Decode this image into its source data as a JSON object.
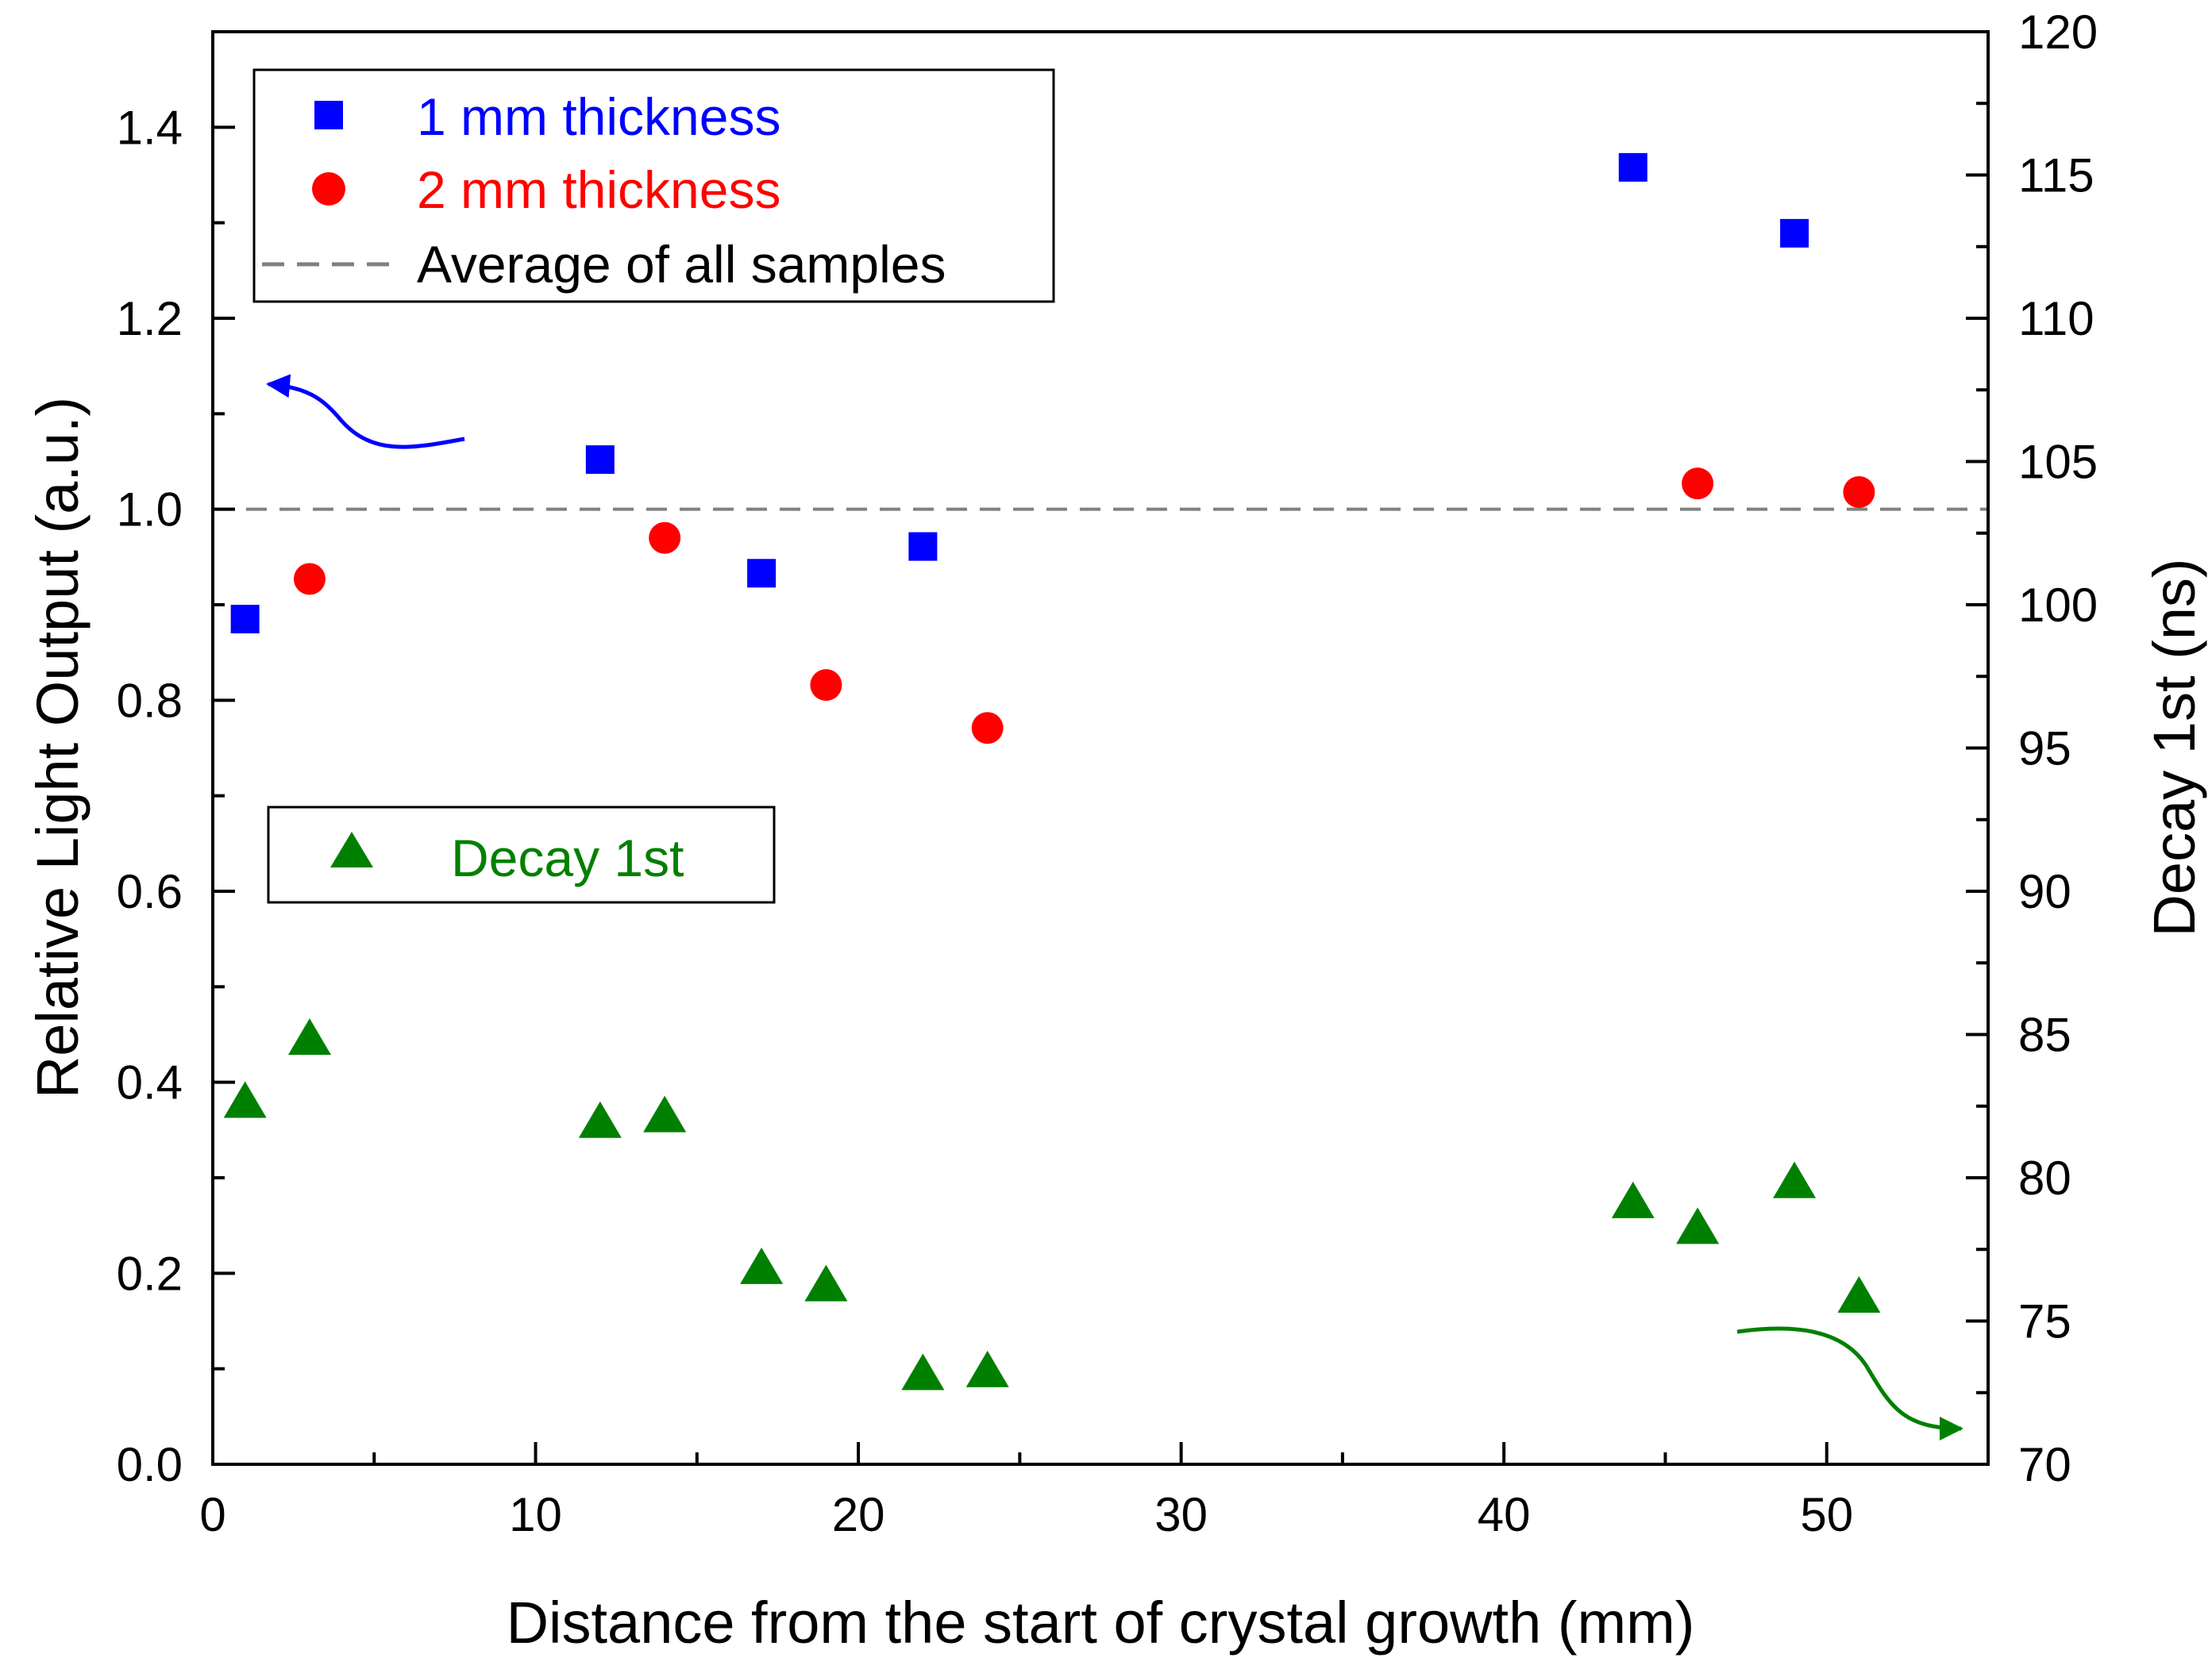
{
  "chart_data": {
    "type": "scatter",
    "title": "",
    "xlabel": "Distance from the start of crystal growth (mm)",
    "ylabel": "Relative Light Output (a.u.)",
    "y2label": "Decay 1st (ns)",
    "xlim": [
      0,
      55
    ],
    "ylim": [
      0.0,
      1.5
    ],
    "y2lim": [
      70,
      120
    ],
    "x_ticks": [
      0,
      10,
      20,
      30,
      40,
      50
    ],
    "y_ticks": [
      0.0,
      0.2,
      0.4,
      0.6,
      0.8,
      1.0,
      1.2,
      1.4
    ],
    "y2_ticks": [
      70,
      75,
      80,
      85,
      90,
      95,
      100,
      105,
      110,
      115,
      120
    ],
    "x_tick_labels": [
      "0",
      "10",
      "20",
      "30",
      "40",
      "50"
    ],
    "y_tick_labels": [
      "0.0",
      "0.2",
      "0.4",
      "0.6",
      "0.8",
      "1.0",
      "1.2",
      "1.4"
    ],
    "y2_tick_labels": [
      "70",
      "75",
      "80",
      "85",
      "90",
      "95",
      "100",
      "105",
      "110",
      "115",
      "120"
    ],
    "series": [
      {
        "name": "1 mm thickness",
        "axis": "left",
        "marker": "square",
        "color": "#0000ff",
        "x": [
          1,
          12,
          17,
          22,
          44,
          49
        ],
        "y": [
          0.885,
          1.052,
          0.933,
          0.961,
          1.358,
          1.289
        ]
      },
      {
        "name": "2 mm thickness",
        "axis": "left",
        "marker": "circle",
        "color": "#ff0000",
        "x": [
          3,
          14,
          19,
          24,
          46,
          51
        ],
        "y": [
          0.927,
          0.97,
          0.816,
          0.771,
          1.027,
          1.018
        ]
      },
      {
        "name": "Decay 1st",
        "axis": "right",
        "marker": "triangle",
        "color": "#008000",
        "x": [
          1,
          3,
          12,
          14,
          17,
          19,
          22,
          24,
          44,
          46,
          49,
          51
        ],
        "y": [
          82.6,
          84.8,
          81.9,
          82.1,
          76.8,
          76.2,
          73.1,
          73.2,
          79.1,
          78.2,
          79.8,
          75.8
        ]
      }
    ],
    "reference_line": {
      "name": "Average of all samples",
      "y": 1.0,
      "style": "dashed",
      "color": "#808080"
    },
    "legend_upper": {
      "placement": "top-left",
      "entries": [
        {
          "label": "1 mm thickness",
          "color": "#0000ff",
          "marker": "square"
        },
        {
          "label": "2 mm thickness",
          "color": "#ff0000",
          "marker": "circle"
        },
        {
          "label": "Average of all samples",
          "color": "#000000",
          "marker": "dashed-line"
        }
      ]
    },
    "legend_lower": {
      "placement": "middle-left",
      "entries": [
        {
          "label": "Decay 1st",
          "color": "#008000",
          "marker": "triangle"
        }
      ]
    },
    "annotations": [
      {
        "name": "left-axis-arrow",
        "direction": "points to left axis",
        "color": "#0000ff"
      },
      {
        "name": "right-axis-arrow",
        "direction": "points to right axis",
        "color": "#008000"
      }
    ]
  }
}
